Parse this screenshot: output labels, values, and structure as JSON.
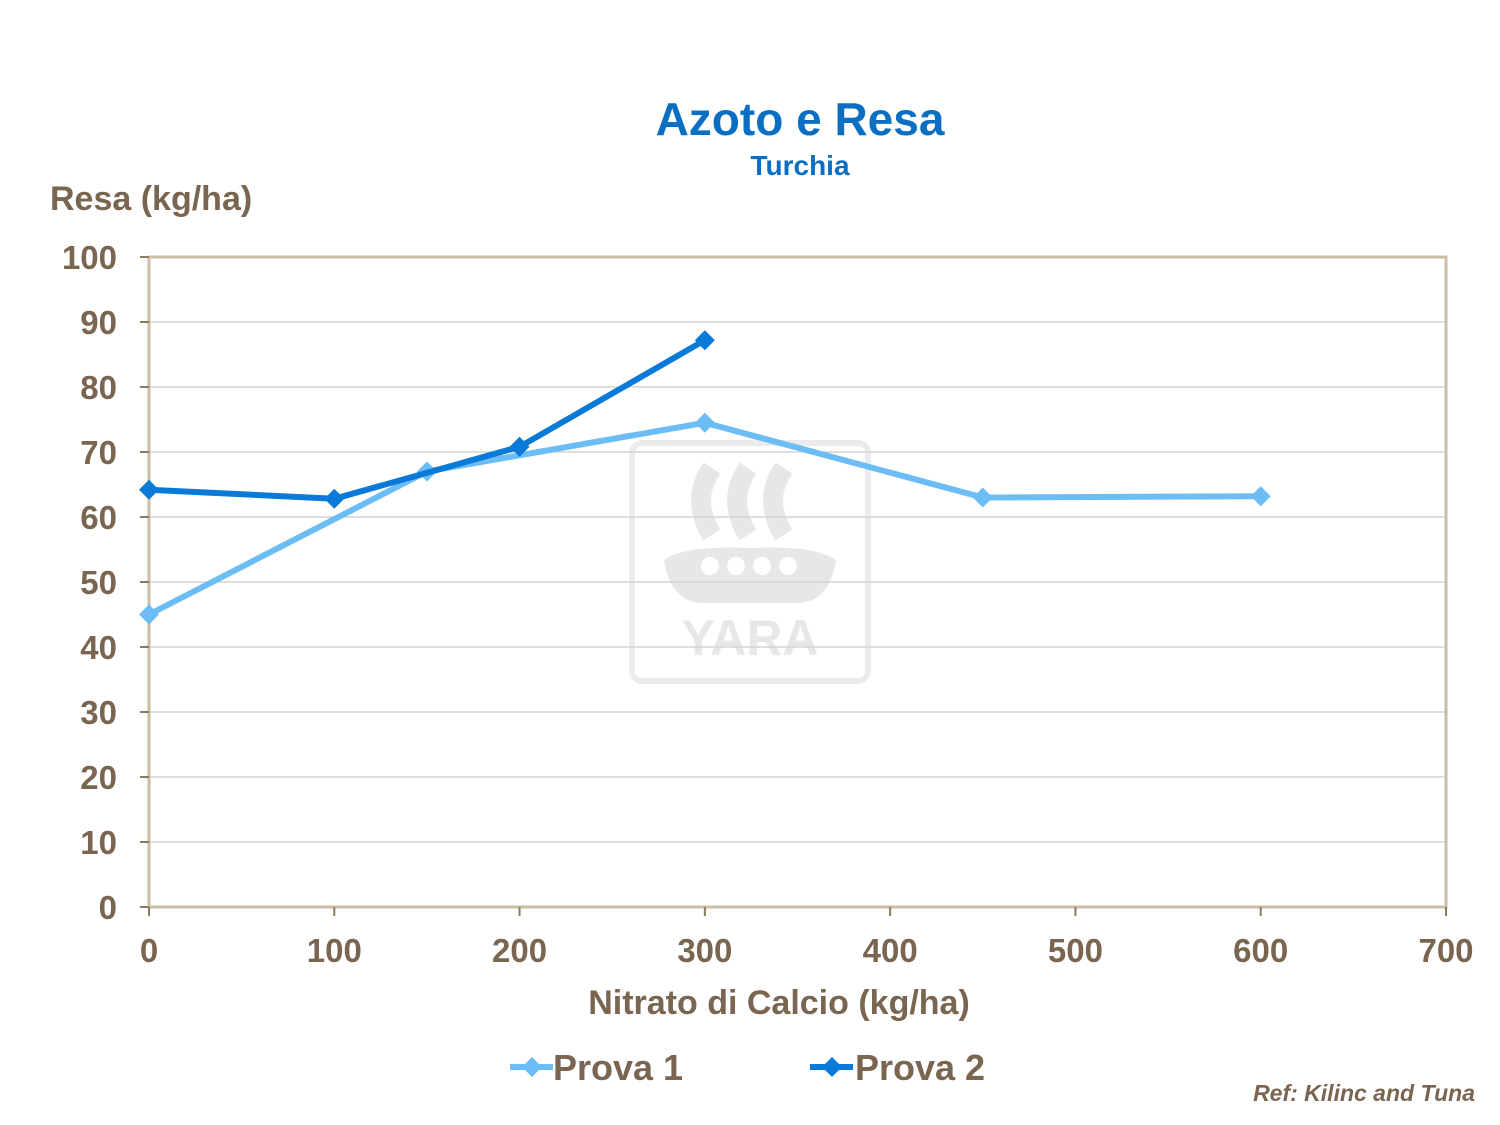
{
  "chart_data": {
    "type": "line",
    "title": "Azoto e Resa",
    "subtitle": "Turchia",
    "ylabel": "Resa (kg/ha)",
    "xlabel": "Nitrato di Calcio (kg/ha)",
    "xlim": [
      0,
      700
    ],
    "ylim": [
      0,
      100
    ],
    "xticks": [
      0,
      100,
      200,
      300,
      400,
      500,
      600,
      700
    ],
    "yticks": [
      0,
      10,
      20,
      30,
      40,
      50,
      60,
      70,
      80,
      90,
      100
    ],
    "grid": "horizontal",
    "legend_position": "bottom",
    "series": [
      {
        "name": "Prova 1",
        "color": "#6cbdf5",
        "x": [
          0,
          150,
          300,
          450,
          600
        ],
        "y": [
          45,
          67,
          74.5,
          63,
          63.2
        ]
      },
      {
        "name": "Prova 2",
        "color": "#0a7ad8",
        "x": [
          0,
          100,
          200,
          300
        ],
        "y": [
          64.2,
          62.8,
          70.8,
          87.2
        ]
      }
    ],
    "watermark": "YARA"
  },
  "ref": "Ref: Kilinc  and Tuna"
}
